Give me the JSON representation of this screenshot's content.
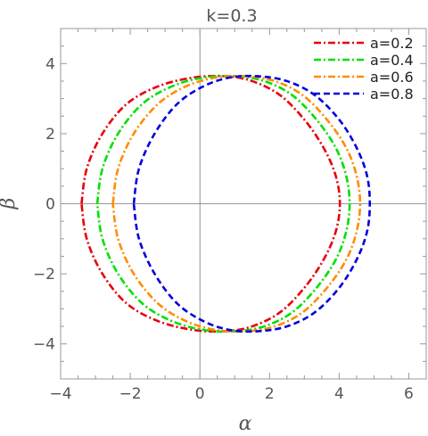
{
  "chart_data": {
    "type": "line",
    "title": "k=0.3",
    "xlabel": "α",
    "ylabel": "β",
    "xlim": [
      -4,
      6.5
    ],
    "ylim": [
      -5,
      5
    ],
    "x_ticks": [
      -4,
      -2,
      0,
      2,
      4,
      6
    ],
    "y_ticks": [
      -4,
      -2,
      0,
      2,
      4
    ],
    "x_tick_labels": [
      "−4",
      "−2",
      "0",
      "2",
      "4",
      "6"
    ],
    "y_tick_labels": [
      "−4",
      "−2",
      "0",
      "2",
      "4"
    ],
    "grid": false,
    "legend_position": "top-right",
    "series": [
      {
        "name": "a=0.2",
        "color": "#e8000b",
        "dash": "dash-dot",
        "x": [
          -3.4,
          -3.25,
          -2.8,
          -2.1,
          -1.2,
          -0.2,
          0.7,
          1.5,
          2.3,
          3.0,
          3.55,
          3.9,
          4.02,
          3.9,
          3.55,
          3.0,
          2.3,
          1.5,
          0.7,
          -0.2,
          -1.2,
          -2.1,
          -2.8,
          -3.25,
          -3.4
        ],
        "y": [
          0.0,
          1.0,
          2.0,
          2.85,
          3.35,
          3.6,
          3.64,
          3.5,
          3.1,
          2.4,
          1.6,
          0.8,
          0.0,
          -0.8,
          -1.6,
          -2.4,
          -3.1,
          -3.5,
          -3.64,
          -3.6,
          -3.35,
          -2.85,
          -2.0,
          -1.0,
          0.0
        ]
      },
      {
        "name": "a=0.4",
        "color": "#00e000",
        "dash": "dash-dot",
        "x": [
          -2.95,
          -2.8,
          -2.35,
          -1.65,
          -0.8,
          0.1,
          1.0,
          1.85,
          2.65,
          3.35,
          3.9,
          4.2,
          4.3,
          4.2,
          3.9,
          3.35,
          2.65,
          1.85,
          1.0,
          0.1,
          -0.8,
          -1.65,
          -2.35,
          -2.8,
          -2.95
        ],
        "y": [
          0.0,
          1.0,
          2.0,
          2.85,
          3.35,
          3.6,
          3.64,
          3.5,
          3.1,
          2.4,
          1.6,
          0.8,
          0.0,
          -0.8,
          -1.6,
          -2.4,
          -3.1,
          -3.5,
          -3.64,
          -3.6,
          -3.35,
          -2.85,
          -2.0,
          -1.0,
          0.0
        ]
      },
      {
        "name": "a=0.6",
        "color": "#ff8c00",
        "dash": "dash-dot",
        "x": [
          -2.5,
          -2.35,
          -1.9,
          -1.2,
          -0.4,
          0.45,
          1.3,
          2.15,
          2.95,
          3.65,
          4.2,
          4.5,
          4.6,
          4.5,
          4.2,
          3.65,
          2.95,
          2.15,
          1.3,
          0.45,
          -0.4,
          -1.2,
          -1.9,
          -2.35,
          -2.5
        ],
        "y": [
          0.0,
          1.0,
          2.0,
          2.85,
          3.35,
          3.6,
          3.64,
          3.5,
          3.1,
          2.4,
          1.6,
          0.8,
          0.0,
          -0.8,
          -1.6,
          -2.4,
          -3.1,
          -3.5,
          -3.64,
          -3.6,
          -3.35,
          -2.85,
          -2.0,
          -1.0,
          0.0
        ]
      },
      {
        "name": "a=0.8",
        "color": "#0000e0",
        "dash": "dashed",
        "x": [
          -1.9,
          -1.75,
          -1.3,
          -0.65,
          0.1,
          0.85,
          1.65,
          2.5,
          3.3,
          4.0,
          4.5,
          4.8,
          4.88,
          4.8,
          4.5,
          4.0,
          3.3,
          2.5,
          1.65,
          0.85,
          0.1,
          -0.65,
          -1.3,
          -1.75,
          -1.9
        ],
        "y": [
          0.0,
          1.0,
          2.0,
          2.85,
          3.35,
          3.6,
          3.64,
          3.5,
          3.1,
          2.4,
          1.6,
          0.8,
          0.0,
          -0.8,
          -1.6,
          -2.4,
          -3.1,
          -3.5,
          -3.64,
          -3.6,
          -3.35,
          -2.85,
          -2.0,
          -1.0,
          0.0
        ]
      }
    ]
  }
}
